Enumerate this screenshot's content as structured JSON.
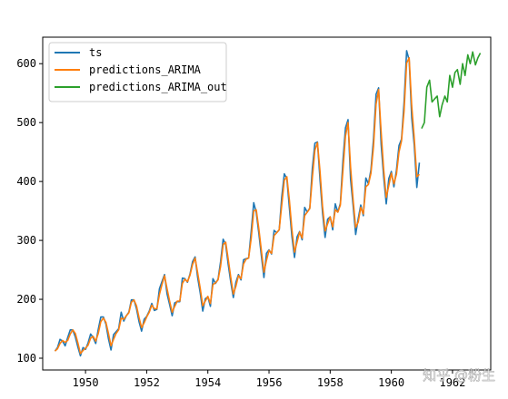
{
  "chart_data": {
    "type": "line",
    "title": "",
    "xlabel": "",
    "ylabel": "",
    "xlim": [
      1948.6,
      1963.25
    ],
    "ylim": [
      80,
      645
    ],
    "x_ticks": [
      1950,
      1952,
      1954,
      1956,
      1958,
      1960,
      1962
    ],
    "y_ticks": [
      100,
      200,
      300,
      400,
      500,
      600
    ],
    "grid": false,
    "legend": {
      "placement": "upper-left",
      "entries": [
        "ts",
        "predictions_ARIMA",
        "predictions_ARIMA_out"
      ]
    },
    "series": [
      {
        "name": "ts",
        "color": "#1f77b4",
        "start_year": 1949,
        "step": "month",
        "values": [
          112,
          118,
          132,
          129,
          121,
          135,
          148,
          148,
          136,
          119,
          104,
          118,
          115,
          126,
          141,
          135,
          125,
          149,
          170,
          170,
          158,
          133,
          114,
          140,
          145,
          150,
          178,
          163,
          172,
          178,
          199,
          199,
          184,
          162,
          146,
          166,
          171,
          180,
          193,
          181,
          183,
          218,
          230,
          242,
          209,
          191,
          172,
          194,
          196,
          196,
          236,
          235,
          229,
          243,
          264,
          272,
          237,
          211,
          180,
          201,
          204,
          188,
          235,
          227,
          234,
          264,
          302,
          293,
          259,
          229,
          203,
          229,
          242,
          233,
          267,
          269,
          270,
          315,
          364,
          347,
          312,
          274,
          237,
          278,
          284,
          277,
          317,
          313,
          318,
          374,
          413,
          405,
          355,
          306,
          271,
          306,
          315,
          301,
          356,
          348,
          355,
          422,
          465,
          467,
          404,
          347,
          305,
          336,
          340,
          318,
          362,
          348,
          363,
          435,
          491,
          505,
          404,
          359,
          310,
          337,
          360,
          342,
          406,
          396,
          420,
          472,
          548,
          559,
          463,
          407,
          362,
          405,
          417,
          391,
          419,
          461,
          472,
          535,
          622,
          606,
          508,
          461,
          390,
          432
        ]
      },
      {
        "name": "predictions_ARIMA",
        "color": "#ff7f0e",
        "start_year": 1949,
        "step": "month",
        "values": [
          112,
          116,
          125,
          130,
          127,
          130,
          141,
          148,
          142,
          126,
          108,
          113,
          117,
          122,
          134,
          137,
          129,
          142,
          162,
          168,
          161,
          142,
          121,
          132,
          142,
          148,
          168,
          166,
          172,
          177,
          195,
          199,
          189,
          169,
          152,
          160,
          170,
          178,
          190,
          184,
          184,
          208,
          225,
          240,
          218,
          197,
          178,
          188,
          197,
          197,
          227,
          234,
          230,
          241,
          259,
          270,
          245,
          219,
          189,
          197,
          205,
          193,
          225,
          228,
          233,
          256,
          293,
          297,
          268,
          237,
          209,
          222,
          240,
          235,
          260,
          268,
          270,
          303,
          350,
          352,
          320,
          283,
          246,
          266,
          283,
          278,
          308,
          313,
          318,
          360,
          402,
          408,
          368,
          318,
          280,
          297,
          314,
          304,
          342,
          348,
          354,
          406,
          453,
          466,
          418,
          358,
          316,
          328,
          340,
          323,
          352,
          348,
          360,
          418,
          477,
          500,
          425,
          369,
          322,
          331,
          356,
          345,
          391,
          395,
          414,
          459,
          531,
          556,
          484,
          420,
          373,
          393,
          414,
          396,
          412,
          450,
          469,
          520,
          601,
          610,
          528,
          473,
          408,
          412
        ]
      },
      {
        "name": "predictions_ARIMA_out",
        "color": "#2ca02c",
        "x": [
          1960.99,
          1961.08,
          1961.16,
          1961.25,
          1961.33,
          1961.41,
          1961.5,
          1961.58,
          1961.66,
          1961.75,
          1961.83,
          1961.91,
          1962.0,
          1962.08,
          1962.16,
          1962.25,
          1962.33,
          1962.41,
          1962.5,
          1962.58,
          1962.66,
          1962.75,
          1962.83,
          1962.91
        ],
        "values": [
          490,
          500,
          560,
          572,
          535,
          540,
          545,
          510,
          530,
          545,
          535,
          580,
          560,
          585,
          590,
          565,
          600,
          580,
          615,
          600,
          620,
          598,
          610,
          618
        ]
      }
    ]
  },
  "watermark": "知乎 @粉生"
}
